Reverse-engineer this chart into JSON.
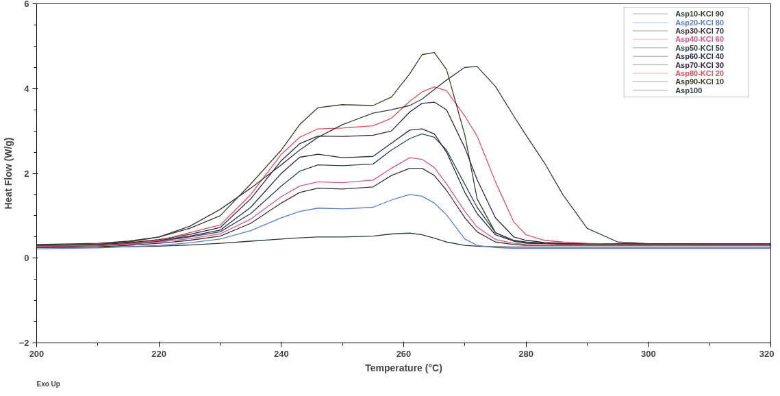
{
  "chart_data": {
    "type": "line",
    "xlabel": "Temperature (°C)",
    "ylabel": "Heat Flow (W/g)",
    "x": [
      200,
      210,
      215,
      220,
      225,
      230,
      235,
      240,
      243,
      246,
      250,
      255,
      258,
      261,
      263,
      265,
      267,
      270,
      272,
      275,
      278,
      280,
      283,
      286,
      290,
      295,
      300,
      310,
      320
    ],
    "xlim": [
      200,
      320
    ],
    "xticks": [
      200,
      220,
      240,
      260,
      280,
      300,
      320
    ],
    "ylim": [
      -2,
      6
    ],
    "yticks": [
      -2,
      0,
      2,
      4,
      6
    ],
    "grid": false,
    "legend": "top right",
    "marker": "none",
    "line_style": "solid",
    "annotations": [
      "Exo Up"
    ],
    "series": [
      {
        "name": "Asp10-KCl 90",
        "color": "#2f3b2f",
        "values": [
          0.25,
          0.26,
          0.27,
          0.28,
          0.31,
          0.35,
          0.4,
          0.45,
          0.48,
          0.5,
          0.5,
          0.52,
          0.57,
          0.59,
          0.55,
          0.47,
          0.38,
          0.3,
          0.28,
          0.27,
          0.26,
          0.26,
          0.26,
          0.26,
          0.26,
          0.26,
          0.26,
          0.26,
          0.26
        ]
      },
      {
        "name": "Asp20-KCl 80",
        "color": "#5a7fd0",
        "values": [
          0.22,
          0.24,
          0.27,
          0.3,
          0.36,
          0.45,
          0.65,
          0.95,
          1.1,
          1.18,
          1.16,
          1.2,
          1.37,
          1.5,
          1.46,
          1.3,
          1.02,
          0.45,
          0.3,
          0.25,
          0.23,
          0.23,
          0.23,
          0.23,
          0.23,
          0.23,
          0.23,
          0.23,
          0.23
        ]
      },
      {
        "name": "Asp30-KCl 70",
        "color": "#3b2f2f",
        "values": [
          0.25,
          0.27,
          0.3,
          0.35,
          0.42,
          0.52,
          0.82,
          1.3,
          1.55,
          1.65,
          1.63,
          1.68,
          1.95,
          2.12,
          2.12,
          1.95,
          1.6,
          0.95,
          0.62,
          0.38,
          0.32,
          0.3,
          0.3,
          0.3,
          0.3,
          0.3,
          0.3,
          0.3,
          0.3
        ]
      },
      {
        "name": "Asp40-KCl 60",
        "color": "#d9558a",
        "values": [
          0.27,
          0.29,
          0.32,
          0.38,
          0.46,
          0.57,
          0.92,
          1.45,
          1.7,
          1.8,
          1.78,
          1.84,
          2.12,
          2.37,
          2.33,
          2.14,
          1.75,
          1.1,
          0.73,
          0.44,
          0.35,
          0.32,
          0.31,
          0.31,
          0.31,
          0.31,
          0.31,
          0.31,
          0.31
        ]
      },
      {
        "name": "Asp50-KCl 50",
        "color": "#2c4250",
        "values": [
          0.28,
          0.3,
          0.33,
          0.4,
          0.5,
          0.62,
          1.05,
          1.7,
          2.05,
          2.2,
          2.18,
          2.22,
          2.55,
          2.82,
          2.93,
          2.85,
          2.55,
          1.74,
          1.2,
          0.6,
          0.42,
          0.38,
          0.35,
          0.34,
          0.33,
          0.33,
          0.33,
          0.33,
          0.33
        ]
      },
      {
        "name": "Asp60-KCl 40",
        "color": "#272c42",
        "values": [
          0.28,
          0.3,
          0.34,
          0.42,
          0.52,
          0.66,
          1.2,
          2.0,
          2.38,
          2.45,
          2.37,
          2.4,
          2.71,
          3.02,
          3.05,
          2.93,
          2.5,
          1.55,
          1.05,
          0.55,
          0.4,
          0.37,
          0.35,
          0.34,
          0.33,
          0.33,
          0.33,
          0.33,
          0.33
        ]
      },
      {
        "name": "Asp70-KCl 30",
        "color": "#33233f",
        "values": [
          0.3,
          0.32,
          0.36,
          0.44,
          0.56,
          0.72,
          1.4,
          2.3,
          2.7,
          2.88,
          2.87,
          2.9,
          3.0,
          3.45,
          3.65,
          3.68,
          3.5,
          2.6,
          1.85,
          0.95,
          0.5,
          0.42,
          0.37,
          0.35,
          0.34,
          0.34,
          0.34,
          0.34,
          0.34
        ]
      },
      {
        "name": "Asp80-KCl 20",
        "color": "#e0505f",
        "values": [
          0.28,
          0.3,
          0.33,
          0.42,
          0.6,
          0.78,
          1.5,
          2.45,
          2.85,
          3.05,
          3.07,
          3.12,
          3.3,
          3.7,
          3.92,
          4.04,
          3.95,
          3.35,
          2.88,
          1.8,
          0.85,
          0.55,
          0.42,
          0.38,
          0.35,
          0.33,
          0.33,
          0.33,
          0.33
        ]
      },
      {
        "name": "Asp90-KCl 10",
        "color": "#3d3b25",
        "values": [
          0.3,
          0.33,
          0.38,
          0.5,
          0.7,
          1.0,
          1.75,
          2.55,
          3.15,
          3.55,
          3.62,
          3.6,
          3.8,
          4.35,
          4.8,
          4.85,
          4.45,
          2.9,
          1.4,
          0.6,
          0.4,
          0.35,
          0.34,
          0.33,
          0.33,
          0.33,
          0.33,
          0.33,
          0.33
        ]
      },
      {
        "name": "Asp100",
        "color": "#323c3c",
        "values": [
          0.32,
          0.35,
          0.4,
          0.5,
          0.75,
          1.15,
          1.65,
          2.2,
          2.55,
          2.85,
          3.15,
          3.42,
          3.5,
          3.6,
          3.75,
          3.98,
          4.2,
          4.5,
          4.52,
          4.05,
          3.35,
          2.9,
          2.25,
          1.5,
          0.7,
          0.38,
          0.34,
          0.33,
          0.33
        ]
      }
    ]
  }
}
